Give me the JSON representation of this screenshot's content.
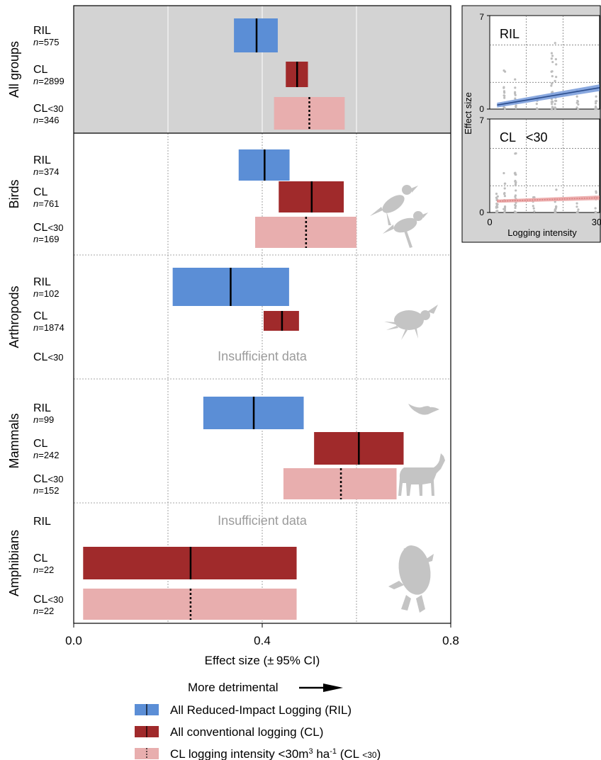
{
  "chart_data": [
    {
      "type": "forest",
      "xlabel": "Effect size (± 95% CI)",
      "xlim": [
        0,
        0.8
      ],
      "xticks": [
        0.0,
        0.4,
        0.8
      ],
      "xtick_labels": [
        "0.0",
        "0.4",
        "0.8"
      ],
      "direction_label": "More detrimental",
      "insufficient_label": "Insufficient data",
      "groups": [
        {
          "name": "All groups",
          "shaded": true,
          "rows": [
            {
              "label": "RIL",
              "n": "575",
              "type": "RIL",
              "low": 0.34,
              "mean": 0.388,
              "high": 0.433
            },
            {
              "label": "CL",
              "n": "2899",
              "type": "CL",
              "low": 0.45,
              "mean": 0.474,
              "high": 0.497
            },
            {
              "label": "CL<30",
              "n": "346",
              "type": "CL30",
              "low": 0.425,
              "mean": 0.5,
              "high": 0.575
            }
          ]
        },
        {
          "name": "Birds",
          "rows": [
            {
              "label": "RIL",
              "n": "374",
              "type": "RIL",
              "low": 0.35,
              "mean": 0.405,
              "high": 0.458
            },
            {
              "label": "CL",
              "n": "761",
              "type": "CL",
              "low": 0.435,
              "mean": 0.505,
              "high": 0.573
            },
            {
              "label": "CL<30",
              "n": "169",
              "type": "CL30",
              "low": 0.385,
              "mean": 0.493,
              "high": 0.6
            }
          ]
        },
        {
          "name": "Arthropods",
          "insufficient_row": 2,
          "rows": [
            {
              "label": "RIL",
              "n": "102",
              "type": "RIL",
              "low": 0.21,
              "mean": 0.333,
              "high": 0.457
            },
            {
              "label": "CL",
              "n": "1874",
              "type": "CL",
              "low": 0.403,
              "mean": 0.442,
              "high": 0.478
            },
            {
              "label": "CL<30",
              "n": "",
              "type": "CL30",
              "low": null,
              "mean": null,
              "high": null
            }
          ]
        },
        {
          "name": "Mammals",
          "rows": [
            {
              "label": "RIL",
              "n": "99",
              "type": "RIL",
              "low": 0.275,
              "mean": 0.382,
              "high": 0.488
            },
            {
              "label": "CL",
              "n": "242",
              "type": "CL",
              "low": 0.51,
              "mean": 0.605,
              "high": 0.7
            },
            {
              "label": "CL<30",
              "n": "152",
              "type": "CL30",
              "low": 0.445,
              "mean": 0.567,
              "high": 0.685
            }
          ]
        },
        {
          "name": "Amphibians",
          "insufficient_row": 0,
          "rows": [
            {
              "label": "RIL",
              "n": "",
              "type": "RIL",
              "low": null,
              "mean": null,
              "high": null
            },
            {
              "label": "CL",
              "n": "22",
              "type": "CL",
              "low": 0.02,
              "mean": 0.248,
              "high": 0.473
            },
            {
              "label": "CL<30",
              "n": "22",
              "type": "CL30",
              "low": 0.02,
              "mean": 0.248,
              "high": 0.473
            }
          ]
        }
      ]
    },
    {
      "type": "scatter",
      "panels": [
        {
          "label": "RIL",
          "color": "#2A4C8C",
          "band": "#7C9FDB",
          "line": [
            [
              2,
              0.3
            ],
            [
              30,
              1.6
            ]
          ]
        },
        {
          "label": "CL",
          "label2": "<30",
          "color": "#D98080",
          "band": "#EBA6A6",
          "line": [
            [
              2,
              0.85
            ],
            [
              30,
              1.1
            ]
          ]
        }
      ],
      "xlabel": "Logging intensity",
      "ylabel": "Effect size",
      "xlim": [
        0,
        30
      ],
      "ylim": [
        0,
        7
      ],
      "xtick_labels": [
        "0",
        "30"
      ],
      "ytick_labels": [
        "0",
        "7"
      ],
      "grid": true
    }
  ],
  "legend": [
    {
      "key": "RIL",
      "label": "All Reduced-Impact Logging (RIL)"
    },
    {
      "key": "CL",
      "label": "All conventional logging (CL)"
    },
    {
      "key": "CL30",
      "label": "CL logging intensity <30m³ ha⁻¹ (CL <30)"
    }
  ],
  "colors": {
    "RIL": "#5B8ED6",
    "CL": "#A02A2B",
    "CL30": "#E8AEAE",
    "shade": "#D3D3D3",
    "insufficient_text": "#9B9B9B",
    "silhouette": "#C4C4C4",
    "scatter_points": "#BDBDBD"
  },
  "icons": {
    "birds": "bird-silhouette-icon",
    "arthropods": "beetle-silhouette-icon",
    "mammals_bat": "bat-silhouette-icon",
    "mammals_deer": "deer-silhouette-icon",
    "amphibians": "frog-silhouette-icon",
    "arrow": "right-arrow-icon"
  }
}
